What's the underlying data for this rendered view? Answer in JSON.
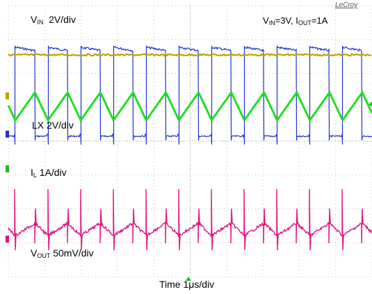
{
  "brand": "LeCroy",
  "labels": {
    "vin": {
      "main": "V",
      "sub": "IN",
      "rest": "  2V/div"
    },
    "condition": {
      "v": "V",
      "vsub": "IN",
      "mid": "=3V, I",
      "isub": "OUT",
      "end": "=1A"
    },
    "lx": "LX  2V/div",
    "il": {
      "main": "I",
      "sub": "L",
      "rest": " 1A/div"
    },
    "vout": {
      "main": "V",
      "sub": "OUT",
      "rest": " 50mV/div"
    },
    "time": "Time  1μs/div"
  },
  "colors": {
    "vin": "#b8a400",
    "lx": "#1e32d2",
    "il": "#22dd22",
    "vout": "#e0157e",
    "grid": "#c0c0c0",
    "marker_il": "#22bb22"
  },
  "chart_data": {
    "type": "line",
    "x_unit": "μs",
    "time_per_div": 1,
    "divisions": 10,
    "period_us": 0.9,
    "duty": 0.6,
    "series": [
      {
        "name": "V_IN",
        "scale": "2V/div",
        "shape": "flat",
        "value_V": 3
      },
      {
        "name": "LX",
        "scale": "2V/div",
        "shape": "square",
        "high_V": 3,
        "low_V": 0
      },
      {
        "name": "I_L",
        "scale": "1A/div",
        "shape": "triangle",
        "avg_A": 1
      },
      {
        "name": "V_OUT",
        "scale": "50mV/div",
        "shape": "ripple_with_spikes",
        "coupling": "AC"
      }
    ]
  }
}
